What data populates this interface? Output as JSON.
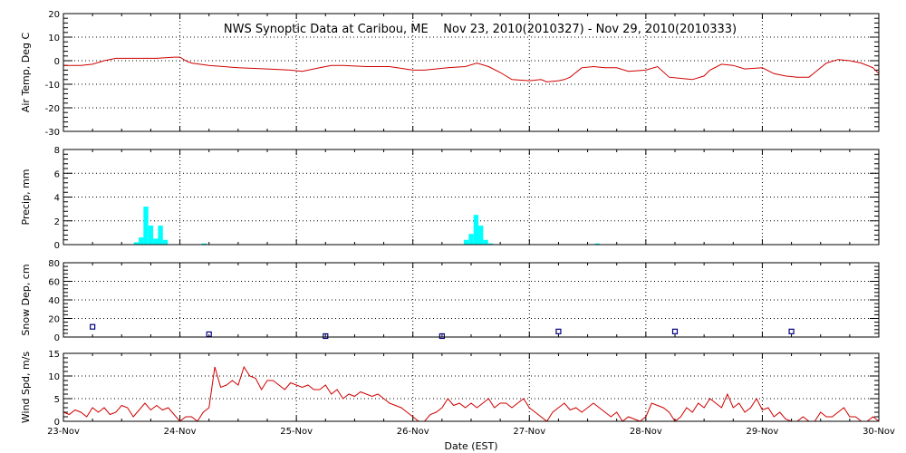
{
  "chart_data": {
    "title": "NWS Synoptic Data at Caribou, ME    Nov 23, 2010(2010327) - Nov 29, 2010(2010333)",
    "xlabel": "Date (EST)",
    "x_tick_labels": [
      "23-Nov",
      "24-Nov",
      "25-Nov",
      "26-Nov",
      "27-Nov",
      "28-Nov",
      "29-Nov",
      "30-Nov"
    ],
    "xlim_days": [
      0,
      7
    ],
    "grid": "dotted vertical at day boundaries, dotted horizontal at major y ticks",
    "panels": [
      {
        "type": "line",
        "ylabel": "Air Temp, Deg C",
        "ylim": [
          -30,
          20
        ],
        "yticks": [
          -30,
          -20,
          -10,
          0,
          10,
          20
        ],
        "color": "#d00000",
        "series": [
          {
            "x": [
              0,
              0.15,
              0.25,
              0.35,
              0.45,
              0.6,
              0.8,
              0.95,
              1.0,
              1.05,
              1.1,
              1.25,
              1.5,
              1.75,
              1.95,
              2.05,
              2.2,
              2.3,
              2.4,
              2.6,
              2.8,
              3.0,
              3.1,
              3.3,
              3.45,
              3.55,
              3.65,
              3.75,
              3.85,
              4.0,
              4.1,
              4.15,
              4.25,
              4.3,
              4.35,
              4.45,
              4.55,
              4.65,
              4.75,
              4.85,
              5.0,
              5.1,
              5.2,
              5.3,
              5.4,
              5.5,
              5.55,
              5.65,
              5.75,
              5.85,
              6.0,
              6.1,
              6.2,
              6.3,
              6.4,
              6.45,
              6.55,
              6.65,
              6.75,
              6.85,
              6.95,
              7.0
            ],
            "y": [
              -2,
              -2,
              -1.5,
              0,
              1,
              1,
              1,
              1.5,
              1.5,
              0,
              -1,
              -2,
              -3,
              -3.5,
              -4,
              -4.5,
              -3,
              -2,
              -2,
              -2.5,
              -2.5,
              -4,
              -4,
              -3,
              -2.5,
              -1,
              -2.5,
              -5,
              -8,
              -8.5,
              -8,
              -9,
              -8.5,
              -8,
              -7,
              -3,
              -2.5,
              -3,
              -3,
              -4.5,
              -4,
              -2.5,
              -7,
              -7.5,
              -8,
              -6.5,
              -4,
              -1.5,
              -2,
              -3.5,
              -3,
              -5.5,
              -6.5,
              -7,
              -7,
              -5,
              -1,
              0.5,
              0,
              -1,
              -3,
              -5.5
            ]
          }
        ]
      },
      {
        "type": "bar",
        "ylabel": "Precip, mm",
        "ylim": [
          0,
          8
        ],
        "yticks": [
          0,
          2,
          4,
          6,
          8
        ],
        "color": "#00ffff",
        "series": [
          {
            "x": [
              0.625,
              0.667,
              0.708,
              0.75,
              0.792,
              0.833,
              0.875,
              1.208,
              3.458,
              3.5,
              3.542,
              3.583,
              3.625,
              3.667,
              4.583
            ],
            "y": [
              0.2,
              0.6,
              3.2,
              1.6,
              0.5,
              1.6,
              0.4,
              0.1,
              0.4,
              0.9,
              2.5,
              1.6,
              0.4,
              0.1,
              0.1
            ]
          }
        ]
      },
      {
        "type": "scatter",
        "ylabel": "Snow Dep, cm",
        "ylim": [
          0,
          80
        ],
        "yticks": [
          0,
          20,
          40,
          60,
          80
        ],
        "color": "#000080",
        "series": [
          {
            "x": [
              0.25,
              1.25,
              2.25,
              3.25,
              4.25,
              5.25,
              6.25
            ],
            "y": [
              11,
              3,
              1,
              1,
              6,
              6,
              6
            ]
          }
        ]
      },
      {
        "type": "line",
        "ylabel": "Wind Spd, m/s",
        "ylim": [
          0,
          15
        ],
        "yticks": [
          0,
          5,
          10,
          15
        ],
        "color": "#d00000",
        "series": [
          {
            "x": [
              0,
              0.05,
              0.1,
              0.15,
              0.2,
              0.25,
              0.3,
              0.35,
              0.4,
              0.45,
              0.5,
              0.55,
              0.6,
              0.65,
              0.7,
              0.75,
              0.8,
              0.85,
              0.9,
              0.95,
              1.0,
              1.05,
              1.1,
              1.15,
              1.2,
              1.25,
              1.3,
              1.35,
              1.4,
              1.45,
              1.5,
              1.55,
              1.6,
              1.65,
              1.7,
              1.75,
              1.8,
              1.85,
              1.9,
              1.95,
              2.0,
              2.05,
              2.1,
              2.15,
              2.2,
              2.25,
              2.3,
              2.35,
              2.4,
              2.45,
              2.5,
              2.55,
              2.6,
              2.65,
              2.7,
              2.75,
              2.8,
              2.85,
              2.9,
              2.95,
              3.0,
              3.05,
              3.1,
              3.15,
              3.2,
              3.25,
              3.3,
              3.35,
              3.4,
              3.45,
              3.5,
              3.55,
              3.6,
              3.65,
              3.7,
              3.75,
              3.8,
              3.85,
              3.9,
              3.95,
              4.0,
              4.05,
              4.1,
              4.15,
              4.2,
              4.25,
              4.3,
              4.35,
              4.4,
              4.45,
              4.5,
              4.55,
              4.6,
              4.65,
              4.7,
              4.75,
              4.8,
              4.85,
              4.9,
              4.95,
              5.0,
              5.05,
              5.1,
              5.15,
              5.2,
              5.25,
              5.3,
              5.35,
              5.4,
              5.45,
              5.5,
              5.55,
              5.6,
              5.65,
              5.7,
              5.75,
              5.8,
              5.85,
              5.9,
              5.95,
              6.0,
              6.05,
              6.1,
              6.15,
              6.2,
              6.25,
              6.3,
              6.35,
              6.4,
              6.45,
              6.5,
              6.55,
              6.6,
              6.65,
              6.7,
              6.75,
              6.8,
              6.85,
              6.9,
              6.95,
              7.0
            ],
            "y": [
              2,
              1.5,
              2.5,
              2,
              1,
              3,
              2,
              3,
              1.5,
              2,
              3.5,
              3,
              1,
              2.5,
              4,
              2.5,
              3.5,
              2.5,
              3,
              1.5,
              0,
              1,
              1,
              0,
              2,
              3,
              12,
              7.5,
              8,
              9,
              8,
              12,
              10,
              9.5,
              7,
              9,
              9,
              8,
              7,
              8.5,
              8,
              7.5,
              8,
              7,
              7,
              8,
              6,
              7,
              5,
              6,
              5.5,
              6.5,
              6,
              5.5,
              6,
              5,
              4,
              3.5,
              3,
              2,
              1,
              0,
              0,
              1.5,
              2,
              3,
              5,
              3.5,
              4,
              3,
              4,
              3,
              4,
              5,
              3,
              4,
              4,
              3,
              4,
              5,
              3,
              2,
              1,
              0,
              2,
              3,
              4,
              2.5,
              3,
              2,
              3,
              4,
              3,
              2,
              1,
              2,
              0,
              1,
              0.5,
              0,
              1,
              4,
              3.5,
              3,
              2,
              0,
              1,
              3,
              2,
              4,
              3,
              5,
              4,
              3,
              6,
              3,
              4,
              2,
              3,
              5,
              2.5,
              3,
              1,
              2,
              0.5,
              0,
              0,
              1,
              0,
              0,
              2,
              1,
              1,
              2,
              3,
              1,
              1,
              0,
              0,
              1,
              0
            ]
          }
        ]
      }
    ]
  }
}
